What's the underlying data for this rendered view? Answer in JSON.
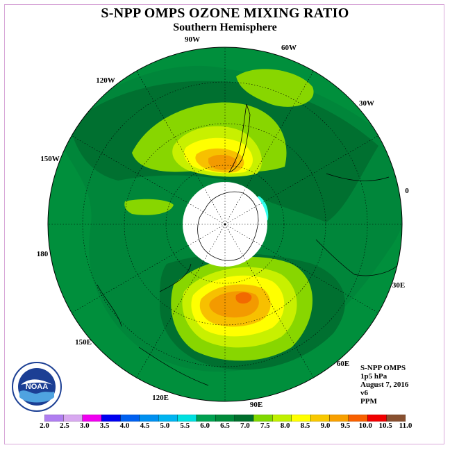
{
  "header": {
    "title": "S-NPP OMPS OZONE MIXING RATIO",
    "subtitle": "Southern Hemisphere"
  },
  "map": {
    "projection": "south-polar-stereographic",
    "longitude_labels": [
      "90W",
      "60W",
      "30W",
      "0",
      "30E",
      "60E",
      "90E",
      "120E",
      "150E",
      "180",
      "150W",
      "120W"
    ],
    "colors": {
      "level_6_0": "#008f3c",
      "level_6_5": "#00863a",
      "level_7_0": "#007030",
      "level_7_5": "#88d600",
      "level_8_0": "#c8f000",
      "level_8_5": "#ffff00",
      "level_9_0": "#f7c000",
      "level_9_5": "#f39a00",
      "level_10_0": "#f26a00",
      "polar_night": "#ffffff",
      "low_value": "#33ffee"
    }
  },
  "info": {
    "product": "S-NPP OMPS",
    "level": "1p5 hPa",
    "date": "August 7, 2016",
    "version": "v6",
    "units": "PPM"
  },
  "logo": {
    "text": "NOAA"
  },
  "colorbar": {
    "labels": [
      "2.0",
      "2.5",
      "3.0",
      "3.5",
      "4.0",
      "4.5",
      "5.0",
      "5.5",
      "6.0",
      "6.5",
      "7.0",
      "7.5",
      "8.0",
      "8.5",
      "9.0",
      "9.5",
      "10.0",
      "10.5",
      "11.0"
    ],
    "colors": [
      "#b07ef0",
      "#d8a8f0",
      "#f000f0",
      "#0000f0",
      "#0060f0",
      "#0090f0",
      "#00b4f0",
      "#00e0e0",
      "#00a050",
      "#008a3a",
      "#006e2c",
      "#80d800",
      "#c0f000",
      "#ffff00",
      "#f8c800",
      "#f8a000",
      "#f86000",
      "#f00000",
      "#885030"
    ]
  }
}
